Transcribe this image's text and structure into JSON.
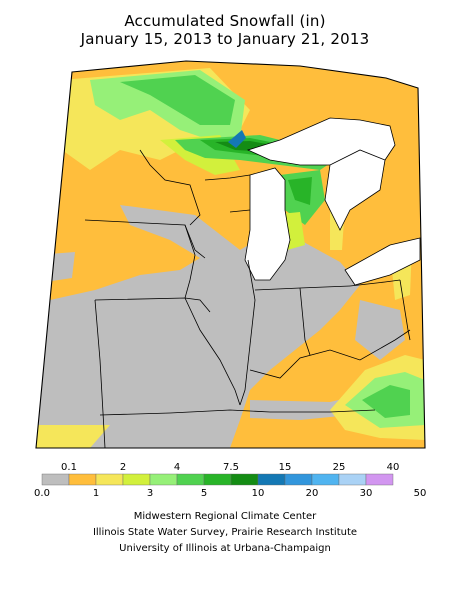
{
  "title": "Accumulated Snowfall (in)",
  "subtitle": "January 15, 2013 to January 21, 2013",
  "legend": {
    "top_ticks": [
      "0.1",
      "2",
      "4",
      "7.5",
      "15",
      "25",
      "40"
    ],
    "bottom_ticks": [
      "0.0",
      "1",
      "3",
      "5",
      "10",
      "20",
      "30",
      "50"
    ],
    "colors": [
      "#bebebe",
      "#ffbe3c",
      "#f5e65a",
      "#d2f03c",
      "#96f078",
      "#50d250",
      "#28b428",
      "#148c14",
      "#1478b4",
      "#3296dc",
      "#50b4f0",
      "#aad2f5",
      "#d296f0"
    ]
  },
  "credits": [
    "Midwestern Regional Climate Center",
    "Illinois State Water Survey, Prairie Research Institute",
    "University of Illinois at Urbana-Champaign"
  ]
}
